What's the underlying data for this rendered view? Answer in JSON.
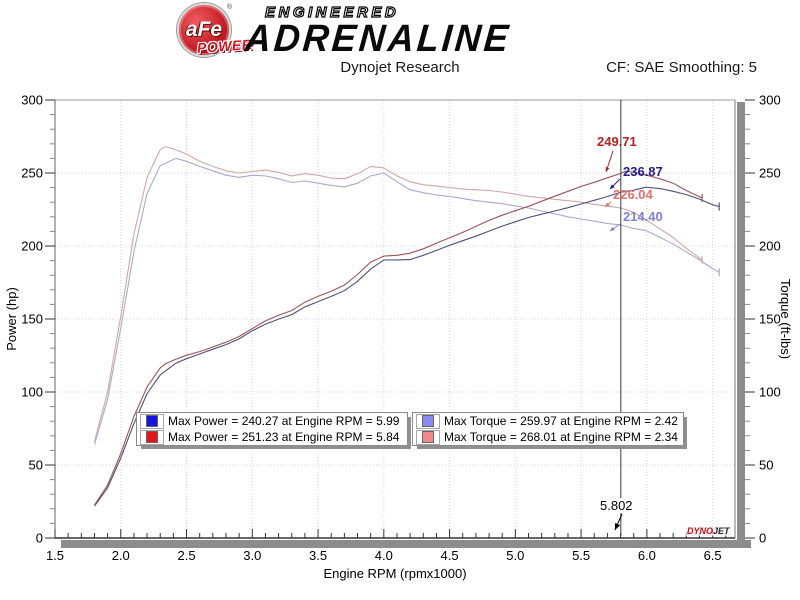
{
  "header": {
    "logo": {
      "afe": "aFe",
      "reg": "®",
      "power": "POWER",
      "engineered": "ENGINEERED",
      "adrenaline": "ADRENALINE"
    },
    "title": "Dynojet Research",
    "smoothing_label": "CF: SAE Smoothing: 5"
  },
  "chart_data": {
    "type": "line",
    "title": "Dynojet Research",
    "xlabel": "Engine RPM (rpmx1000)",
    "ylabel_left": "Power (hp)",
    "ylabel_right": "Torque (ft-lbs)",
    "xlim": [
      1.5,
      6.67
    ],
    "ylim_left": [
      0,
      300
    ],
    "ylim_right": [
      0,
      300
    ],
    "x_tick_labels": [
      "1.5",
      "2.0",
      "2.5",
      "3.0",
      "3.5",
      "4.0",
      "4.5",
      "5.0",
      "5.5",
      "6.0",
      "6.5"
    ],
    "y_tick_labels_left": [
      "0",
      "50",
      "100",
      "150",
      "200",
      "250",
      "300"
    ],
    "y_tick_labels_right": [
      "0",
      "50",
      "100",
      "150",
      "200",
      "250",
      "300"
    ],
    "x_major_step": 0.5,
    "x_minor_step": 0.1,
    "y_major_step": 50,
    "y_minor_step": 10,
    "grid": "dotted",
    "legend_position": "bottom-center",
    "cursor": {
      "rpm": 5.802,
      "label": "5.802"
    },
    "cursor_values": [
      {
        "text": "249.71",
        "color": "#b22222",
        "series": "power-modified"
      },
      {
        "text": "236.87",
        "color": "#1f1f8f",
        "series": "power-stock"
      },
      {
        "text": "226.04",
        "color": "#e07070",
        "series": "torque-modified"
      },
      {
        "text": "214.40",
        "color": "#8080d8",
        "series": "torque-stock"
      }
    ],
    "legend_groups": [
      {
        "rows": [
          {
            "swatch": "#1414e6",
            "text": "Max Power = 240.27 at Engine RPM = 5.99"
          },
          {
            "swatch": "#e61414",
            "text": "Max Power = 251.23 at Engine RPM = 5.84"
          }
        ]
      },
      {
        "rows": [
          {
            "swatch": "#8989f2",
            "text": "Max Torque = 259.97 at Engine RPM = 2.42"
          },
          {
            "swatch": "#f28989",
            "text": "Max Torque = 268.01 at Engine RPM = 2.34"
          }
        ]
      }
    ],
    "series": [
      {
        "name": "torque-stock",
        "color": "#a9a9cf",
        "axis": "right",
        "points": [
          [
            1.8,
            64
          ],
          [
            1.9,
            95
          ],
          [
            2.0,
            144
          ],
          [
            2.1,
            196
          ],
          [
            2.2,
            236
          ],
          [
            2.3,
            255
          ],
          [
            2.42,
            259.97
          ],
          [
            2.5,
            258
          ],
          [
            2.6,
            254.5
          ],
          [
            2.7,
            251.5
          ],
          [
            2.8,
            248.5
          ],
          [
            2.9,
            247
          ],
          [
            3.0,
            248.5
          ],
          [
            3.1,
            248
          ],
          [
            3.2,
            246
          ],
          [
            3.3,
            243.5
          ],
          [
            3.4,
            244.5
          ],
          [
            3.5,
            243
          ],
          [
            3.6,
            241.5
          ],
          [
            3.7,
            240.5
          ],
          [
            3.8,
            243
          ],
          [
            3.9,
            248
          ],
          [
            4.0,
            250
          ],
          [
            4.1,
            244
          ],
          [
            4.2,
            238.5
          ],
          [
            4.3,
            236.5
          ],
          [
            4.4,
            235
          ],
          [
            4.5,
            234
          ],
          [
            4.6,
            232.5
          ],
          [
            4.7,
            231
          ],
          [
            4.8,
            230
          ],
          [
            4.9,
            229
          ],
          [
            5.0,
            227.5
          ],
          [
            5.1,
            226
          ],
          [
            5.2,
            224
          ],
          [
            5.3,
            222
          ],
          [
            5.4,
            220
          ],
          [
            5.5,
            218.5
          ],
          [
            5.6,
            217
          ],
          [
            5.7,
            215.5
          ],
          [
            5.802,
            214.4
          ],
          [
            5.9,
            212
          ],
          [
            5.99,
            210.7
          ],
          [
            6.1,
            206
          ],
          [
            6.2,
            201.2
          ],
          [
            6.3,
            196
          ],
          [
            6.4,
            190.5
          ],
          [
            6.5,
            184.5
          ],
          [
            6.55,
            182
          ]
        ]
      },
      {
        "name": "torque-modified",
        "color": "#d2a6a8",
        "axis": "right",
        "points": [
          [
            1.8,
            66
          ],
          [
            1.9,
            100
          ],
          [
            2.0,
            152
          ],
          [
            2.1,
            208
          ],
          [
            2.2,
            247
          ],
          [
            2.3,
            266
          ],
          [
            2.34,
            268.01
          ],
          [
            2.4,
            266.5
          ],
          [
            2.5,
            263
          ],
          [
            2.6,
            258
          ],
          [
            2.7,
            254.5
          ],
          [
            2.8,
            251.5
          ],
          [
            2.9,
            250
          ],
          [
            3.0,
            251
          ],
          [
            3.1,
            252
          ],
          [
            3.2,
            250.5
          ],
          [
            3.3,
            248
          ],
          [
            3.4,
            249.5
          ],
          [
            3.5,
            248.5
          ],
          [
            3.6,
            246.5
          ],
          [
            3.7,
            246
          ],
          [
            3.8,
            249.5
          ],
          [
            3.9,
            254.5
          ],
          [
            4.0,
            253.5
          ],
          [
            4.1,
            248
          ],
          [
            4.2,
            244
          ],
          [
            4.3,
            242
          ],
          [
            4.4,
            241
          ],
          [
            4.5,
            240
          ],
          [
            4.6,
            239
          ],
          [
            4.7,
            238.5
          ],
          [
            4.8,
            238
          ],
          [
            4.9,
            237
          ],
          [
            5.0,
            235.5
          ],
          [
            5.1,
            234
          ],
          [
            5.2,
            233
          ],
          [
            5.3,
            232
          ],
          [
            5.4,
            231
          ],
          [
            5.5,
            230
          ],
          [
            5.6,
            228.5
          ],
          [
            5.7,
            227.3
          ],
          [
            5.802,
            226.04
          ],
          [
            5.9,
            223
          ],
          [
            6.0,
            217.5
          ],
          [
            6.1,
            211.8
          ],
          [
            6.2,
            205.8
          ],
          [
            6.3,
            198.4
          ],
          [
            6.42,
            190.5
          ]
        ]
      },
      {
        "name": "power-stock",
        "color": "#50507e",
        "axis": "left",
        "points": [
          [
            1.8,
            21.9
          ],
          [
            1.9,
            34.4
          ],
          [
            2.0,
            54.8
          ],
          [
            2.1,
            78.4
          ],
          [
            2.2,
            98.9
          ],
          [
            2.3,
            111.7
          ],
          [
            2.42,
            119.8
          ],
          [
            2.5,
            122.8
          ],
          [
            2.6,
            126.0
          ],
          [
            2.7,
            129.3
          ],
          [
            2.8,
            132.5
          ],
          [
            2.9,
            136.4
          ],
          [
            3.0,
            142.0
          ],
          [
            3.1,
            146.4
          ],
          [
            3.2,
            149.9
          ],
          [
            3.3,
            153.0
          ],
          [
            3.4,
            158.3
          ],
          [
            3.5,
            161.9
          ],
          [
            3.6,
            165.5
          ],
          [
            3.7,
            169.4
          ],
          [
            3.8,
            175.8
          ],
          [
            3.9,
            184.2
          ],
          [
            4.0,
            190.4
          ],
          [
            4.1,
            190.5
          ],
          [
            4.2,
            190.7
          ],
          [
            4.3,
            193.6
          ],
          [
            4.4,
            196.9
          ],
          [
            4.5,
            200.5
          ],
          [
            4.6,
            203.6
          ],
          [
            4.7,
            206.7
          ],
          [
            4.8,
            210.2
          ],
          [
            4.9,
            213.6
          ],
          [
            5.0,
            216.6
          ],
          [
            5.1,
            219.5
          ],
          [
            5.2,
            221.8
          ],
          [
            5.3,
            224.0
          ],
          [
            5.4,
            226.2
          ],
          [
            5.5,
            228.8
          ],
          [
            5.6,
            231.3
          ],
          [
            5.7,
            233.9
          ],
          [
            5.802,
            236.87
          ],
          [
            5.9,
            238.2
          ],
          [
            5.99,
            240.27
          ],
          [
            6.1,
            239.3
          ],
          [
            6.2,
            237.5
          ],
          [
            6.3,
            235.2
          ],
          [
            6.4,
            232.1
          ],
          [
            6.5,
            228.3
          ],
          [
            6.55,
            227.0
          ]
        ]
      },
      {
        "name": "power-modified",
        "color": "#9c5459",
        "axis": "left",
        "points": [
          [
            1.8,
            22.6
          ],
          [
            1.9,
            36.2
          ],
          [
            2.0,
            57.9
          ],
          [
            2.1,
            83.2
          ],
          [
            2.2,
            103.5
          ],
          [
            2.3,
            116.5
          ],
          [
            2.34,
            119.4
          ],
          [
            2.4,
            121.8
          ],
          [
            2.5,
            125.2
          ],
          [
            2.6,
            127.7
          ],
          [
            2.7,
            130.8
          ],
          [
            2.8,
            134.1
          ],
          [
            2.9,
            138.0
          ],
          [
            3.0,
            143.4
          ],
          [
            3.1,
            148.7
          ],
          [
            3.2,
            152.6
          ],
          [
            3.3,
            155.8
          ],
          [
            3.4,
            161.5
          ],
          [
            3.5,
            165.6
          ],
          [
            3.6,
            169.0
          ],
          [
            3.7,
            173.3
          ],
          [
            3.8,
            180.5
          ],
          [
            3.9,
            189.0
          ],
          [
            4.0,
            193.1
          ],
          [
            4.1,
            193.6
          ],
          [
            4.2,
            195.1
          ],
          [
            4.3,
            198.1
          ],
          [
            4.4,
            201.9
          ],
          [
            4.5,
            205.6
          ],
          [
            4.6,
            209.3
          ],
          [
            4.7,
            213.4
          ],
          [
            4.8,
            217.5
          ],
          [
            4.9,
            221.1
          ],
          [
            5.0,
            224.2
          ],
          [
            5.1,
            227.2
          ],
          [
            5.2,
            230.7
          ],
          [
            5.3,
            234.1
          ],
          [
            5.4,
            237.5
          ],
          [
            5.5,
            240.8
          ],
          [
            5.6,
            243.6
          ],
          [
            5.7,
            246.7
          ],
          [
            5.802,
            249.71
          ],
          [
            5.84,
            251.23
          ],
          [
            5.9,
            250.5
          ],
          [
            6.0,
            248.5
          ],
          [
            6.1,
            246.0
          ],
          [
            6.2,
            243.0
          ],
          [
            6.3,
            238.0
          ],
          [
            6.42,
            232.9
          ]
        ]
      }
    ],
    "watermark": {
      "dyno": "DYNO",
      "jet": "JET"
    }
  }
}
